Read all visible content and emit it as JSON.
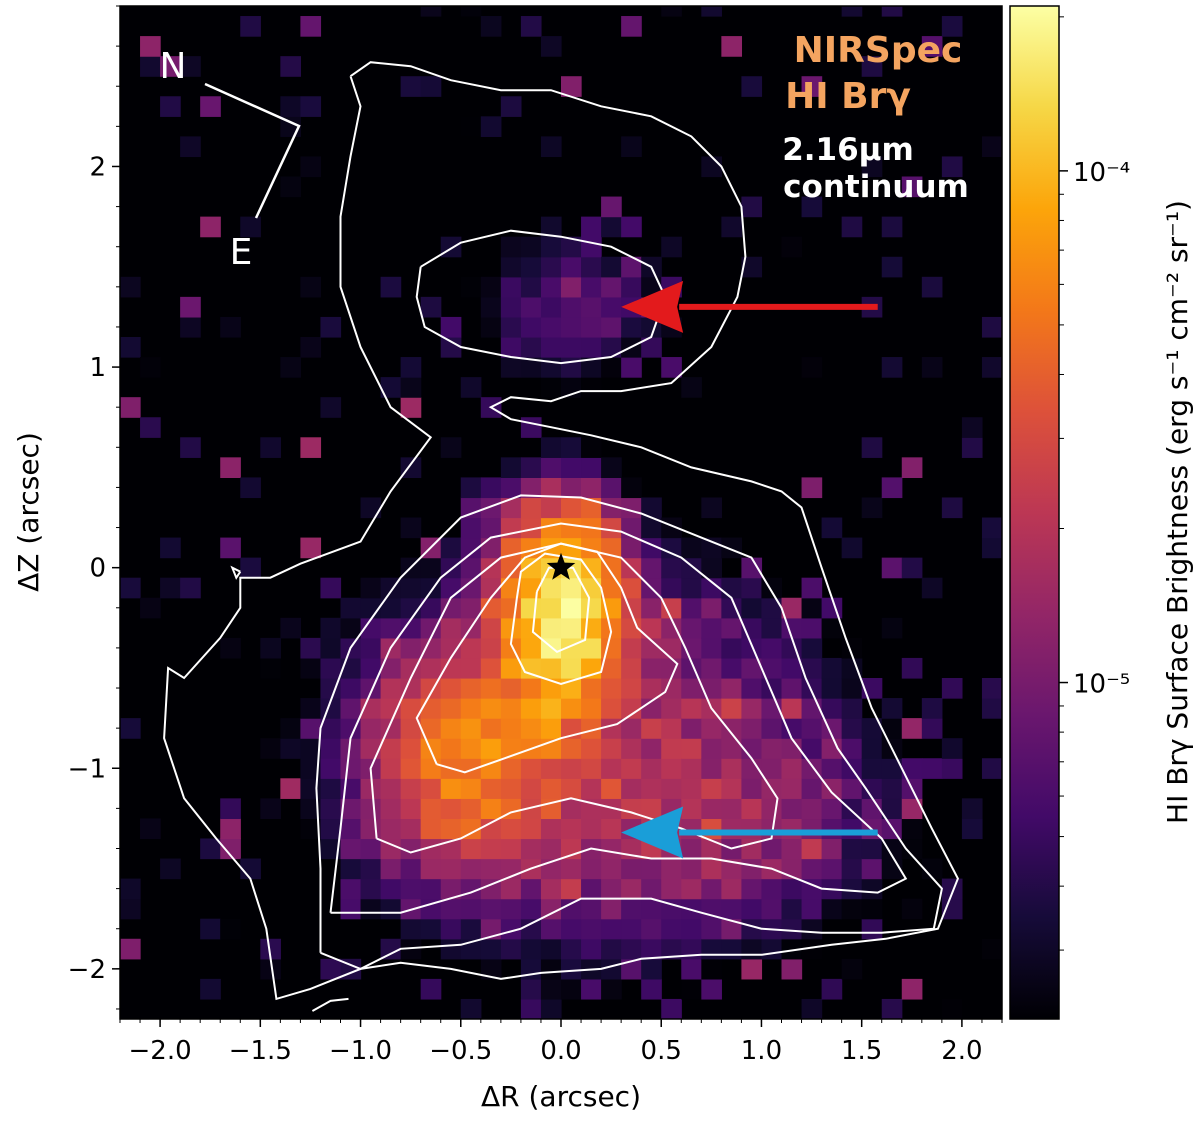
{
  "chart_data": {
    "type": "heatmap",
    "title": "",
    "xlabel": "ΔR (arcsec)",
    "ylabel": "ΔZ (arcsec)",
    "xlim": [
      -2.2,
      2.2
    ],
    "ylim": [
      -2.25,
      2.8
    ],
    "x_ticks": [
      -2.0,
      -1.5,
      -1.0,
      -0.5,
      0.0,
      0.5,
      1.0,
      1.5,
      2.0
    ],
    "x_tick_labels": [
      "−2.0",
      "−1.5",
      "−1.0",
      "−0.5",
      "0.0",
      "0.5",
      "1.0",
      "1.5",
      "2.0"
    ],
    "y_ticks": [
      -2,
      -1,
      0,
      1,
      2
    ],
    "y_tick_labels": [
      "−2",
      "−1",
      "0",
      "1",
      "2"
    ],
    "colorbar": {
      "label": "HI Brγ Surface Brightness (erg s⁻¹ cm⁻² sr⁻¹)",
      "scale": "log",
      "range": [
        2.2e-06,
        0.00021
      ],
      "major_ticks": [
        1e-05,
        0.0001
      ],
      "major_tick_labels": [
        "10⁻⁵",
        "10⁻⁴"
      ],
      "colormap": "inferno"
    },
    "legend": {
      "line1": "NIRSpec",
      "line2": "HI Brγ",
      "line3": "2.16μm",
      "line4": "continuum",
      "emission_color": "#f4a460",
      "continuum_color": "#ffffff"
    },
    "compass": {
      "north_label": "N",
      "east_label": "E"
    },
    "star_marker": {
      "x": 0.0,
      "y": 0.0
    },
    "arrows": [
      {
        "color": "#e31a1c",
        "tip": [
          0.3,
          1.3
        ],
        "tail": [
          1.58,
          1.3
        ]
      },
      {
        "color": "#1a9ed8",
        "tip": [
          0.3,
          -1.32
        ],
        "tail": [
          1.58,
          -1.32
        ]
      }
    ],
    "emission_components": [
      {
        "name": "peak",
        "x": 0.0,
        "y": -0.22,
        "sx": 0.17,
        "sy": 0.28,
        "amp": 0.00017
      },
      {
        "name": "lower-left lobe",
        "x": -0.45,
        "y": -0.95,
        "sx": 0.28,
        "sy": 0.3,
        "amp": 5e-05
      },
      {
        "name": "base",
        "x": 0.1,
        "y": -0.9,
        "sx": 0.7,
        "sy": 0.6,
        "amp": 1.6e-05
      },
      {
        "name": "lower-right tail",
        "x": 0.85,
        "y": -1.25,
        "sx": 0.5,
        "sy": 0.35,
        "amp": 8e-06
      },
      {
        "name": "upper blob",
        "x": 0.05,
        "y": 1.3,
        "sx": 0.35,
        "sy": 0.25,
        "amp": 7e-06
      }
    ],
    "contours": [
      {
        "level": 1,
        "points": [
          [
            -1.05,
            2.45
          ],
          [
            -0.95,
            2.52
          ],
          [
            -0.75,
            2.5
          ],
          [
            -0.55,
            2.43
          ],
          [
            -0.3,
            2.38
          ],
          [
            -0.05,
            2.38
          ],
          [
            0.2,
            2.3
          ],
          [
            0.45,
            2.25
          ],
          [
            0.65,
            2.15
          ],
          [
            0.8,
            2.0
          ],
          [
            0.9,
            1.8
          ],
          [
            0.92,
            1.55
          ],
          [
            0.88,
            1.35
          ],
          [
            0.75,
            1.1
          ],
          [
            0.55,
            0.92
          ],
          [
            0.3,
            0.88
          ],
          [
            0.1,
            0.88
          ],
          [
            -0.05,
            0.83
          ],
          [
            -0.25,
            0.85
          ],
          [
            -0.35,
            0.8
          ],
          [
            -0.25,
            0.74
          ],
          [
            -0.05,
            0.7
          ],
          [
            0.15,
            0.66
          ],
          [
            0.4,
            0.6
          ],
          [
            0.65,
            0.5
          ],
          [
            0.95,
            0.43
          ],
          [
            1.1,
            0.38
          ],
          [
            1.2,
            0.3
          ],
          [
            1.3,
            0.0
          ],
          [
            1.42,
            -0.35
          ],
          [
            1.55,
            -0.7
          ],
          [
            1.7,
            -1.0
          ],
          [
            1.85,
            -1.3
          ],
          [
            1.98,
            -1.55
          ],
          [
            1.88,
            -1.8
          ],
          [
            1.62,
            -1.85
          ],
          [
            1.35,
            -1.88
          ],
          [
            1.0,
            -1.93
          ],
          [
            0.7,
            -1.93
          ],
          [
            0.4,
            -1.95
          ],
          [
            0.2,
            -2.0
          ],
          [
            -0.1,
            -2.02
          ],
          [
            -0.3,
            -2.05
          ],
          [
            -0.55,
            -2.0
          ],
          [
            -0.8,
            -1.97
          ],
          [
            -1.0,
            -2.0
          ],
          [
            -1.25,
            -2.1
          ],
          [
            -1.42,
            -2.15
          ],
          [
            -1.47,
            -1.8
          ],
          [
            -1.55,
            -1.55
          ],
          [
            -1.72,
            -1.35
          ],
          [
            -1.88,
            -1.15
          ],
          [
            -1.98,
            -0.85
          ],
          [
            -1.96,
            -0.5
          ],
          [
            -1.88,
            -0.55
          ],
          [
            -1.7,
            -0.35
          ],
          [
            -1.6,
            -0.2
          ],
          [
            -1.6,
            -0.05
          ],
          [
            -1.45,
            -0.05
          ],
          [
            -1.3,
            0.02
          ],
          [
            -1.0,
            0.13
          ],
          [
            -0.85,
            0.38
          ],
          [
            -0.65,
            0.65
          ],
          [
            -0.85,
            0.8
          ],
          [
            -1.0,
            1.1
          ],
          [
            -1.1,
            1.4
          ],
          [
            -1.1,
            1.75
          ],
          [
            -1.05,
            2.05
          ],
          [
            -1.0,
            2.3
          ],
          [
            -1.05,
            2.45
          ]
        ]
      },
      {
        "level": 2,
        "points": [
          [
            -0.7,
            1.5
          ],
          [
            -0.5,
            1.62
          ],
          [
            -0.25,
            1.68
          ],
          [
            0.0,
            1.65
          ],
          [
            0.25,
            1.6
          ],
          [
            0.45,
            1.5
          ],
          [
            0.52,
            1.35
          ],
          [
            0.45,
            1.15
          ],
          [
            0.25,
            1.05
          ],
          [
            0.0,
            1.02
          ],
          [
            -0.25,
            1.05
          ],
          [
            -0.5,
            1.1
          ],
          [
            -0.68,
            1.2
          ],
          [
            -0.72,
            1.35
          ],
          [
            -0.7,
            1.5
          ]
        ]
      },
      {
        "level": 3,
        "points": [
          [
            -1.2,
            -1.92
          ],
          [
            -1.2,
            -1.5
          ],
          [
            -1.22,
            -1.1
          ],
          [
            -1.2,
            -0.8
          ],
          [
            -1.05,
            -0.4
          ],
          [
            -0.8,
            -0.05
          ],
          [
            -0.5,
            0.25
          ],
          [
            -0.2,
            0.36
          ],
          [
            0.1,
            0.35
          ],
          [
            0.4,
            0.27
          ],
          [
            0.7,
            0.15
          ],
          [
            0.95,
            0.05
          ],
          [
            1.1,
            -0.2
          ],
          [
            1.22,
            -0.55
          ],
          [
            1.38,
            -0.9
          ],
          [
            1.52,
            -1.1
          ],
          [
            1.72,
            -1.4
          ],
          [
            1.9,
            -1.6
          ],
          [
            1.86,
            -1.8
          ],
          [
            1.6,
            -1.82
          ],
          [
            1.3,
            -1.82
          ],
          [
            1.0,
            -1.8
          ],
          [
            0.7,
            -1.72
          ],
          [
            0.45,
            -1.65
          ],
          [
            0.1,
            -1.65
          ],
          [
            -0.2,
            -1.8
          ],
          [
            -0.5,
            -1.88
          ],
          [
            -0.8,
            -1.9
          ],
          [
            -1.0,
            -2.0
          ],
          [
            -1.2,
            -1.92
          ]
        ]
      },
      {
        "level": 4,
        "points": [
          [
            -1.15,
            -1.72
          ],
          [
            -1.1,
            -1.3
          ],
          [
            -1.05,
            -0.85
          ],
          [
            -0.85,
            -0.4
          ],
          [
            -0.6,
            -0.05
          ],
          [
            -0.35,
            0.15
          ],
          [
            0.0,
            0.22
          ],
          [
            0.3,
            0.18
          ],
          [
            0.6,
            0.05
          ],
          [
            0.85,
            -0.15
          ],
          [
            1.0,
            -0.5
          ],
          [
            1.15,
            -0.85
          ],
          [
            1.35,
            -1.12
          ],
          [
            1.6,
            -1.35
          ],
          [
            1.72,
            -1.55
          ],
          [
            1.58,
            -1.62
          ],
          [
            1.3,
            -1.6
          ],
          [
            1.05,
            -1.5
          ],
          [
            0.75,
            -1.45
          ],
          [
            0.45,
            -1.45
          ],
          [
            0.15,
            -1.4
          ],
          [
            -0.15,
            -1.5
          ],
          [
            -0.45,
            -1.62
          ],
          [
            -0.8,
            -1.72
          ],
          [
            -1.15,
            -1.72
          ]
        ]
      },
      {
        "level": 5,
        "points": [
          [
            -0.92,
            -1.35
          ],
          [
            -0.95,
            -1.0
          ],
          [
            -0.75,
            -0.55
          ],
          [
            -0.55,
            -0.15
          ],
          [
            -0.3,
            0.05
          ],
          [
            0.0,
            0.12
          ],
          [
            0.3,
            0.05
          ],
          [
            0.5,
            -0.15
          ],
          [
            0.62,
            -0.4
          ],
          [
            0.75,
            -0.7
          ],
          [
            0.95,
            -0.95
          ],
          [
            1.08,
            -1.15
          ],
          [
            1.05,
            -1.35
          ],
          [
            0.85,
            -1.4
          ],
          [
            0.6,
            -1.3
          ],
          [
            0.35,
            -1.22
          ],
          [
            0.05,
            -1.15
          ],
          [
            -0.25,
            -1.22
          ],
          [
            -0.5,
            -1.35
          ],
          [
            -0.75,
            -1.42
          ],
          [
            -0.92,
            -1.35
          ]
        ]
      },
      {
        "level": 6,
        "points": [
          [
            -0.62,
            -0.98
          ],
          [
            -0.72,
            -0.75
          ],
          [
            -0.55,
            -0.45
          ],
          [
            -0.35,
            -0.15
          ],
          [
            -0.18,
            0.05
          ],
          [
            0.0,
            0.12
          ],
          [
            0.18,
            0.08
          ],
          [
            0.3,
            -0.1
          ],
          [
            0.38,
            -0.3
          ],
          [
            0.58,
            -0.48
          ],
          [
            0.52,
            -0.62
          ],
          [
            0.28,
            -0.78
          ],
          [
            0.0,
            -0.85
          ],
          [
            -0.28,
            -0.95
          ],
          [
            -0.48,
            -1.02
          ],
          [
            -0.62,
            -0.98
          ]
        ]
      },
      {
        "level": 7,
        "points": [
          [
            -0.22,
            -0.15
          ],
          [
            -0.25,
            -0.38
          ],
          [
            -0.18,
            -0.52
          ],
          [
            0.0,
            -0.58
          ],
          [
            0.2,
            -0.52
          ],
          [
            0.25,
            -0.32
          ],
          [
            0.2,
            -0.1
          ],
          [
            0.1,
            0.04
          ],
          [
            -0.08,
            0.07
          ],
          [
            -0.2,
            -0.02
          ],
          [
            -0.22,
            -0.15
          ]
        ]
      },
      {
        "level": 8,
        "points": [
          [
            -0.12,
            -0.12
          ],
          [
            -0.14,
            -0.32
          ],
          [
            -0.02,
            -0.42
          ],
          [
            0.12,
            -0.36
          ],
          [
            0.14,
            -0.15
          ],
          [
            0.06,
            0.0
          ],
          [
            -0.06,
            0.0
          ],
          [
            -0.12,
            -0.12
          ]
        ]
      },
      {
        "level": 9,
        "points": [
          [
            -1.6,
            -0.02
          ],
          [
            -1.64,
            0.0
          ],
          [
            -1.62,
            -0.05
          ],
          [
            -1.6,
            -0.02
          ]
        ]
      },
      {
        "level": 10,
        "points": [
          [
            -1.24,
            -2.21
          ],
          [
            -1.15,
            -2.16
          ],
          [
            -1.06,
            -2.15
          ]
        ]
      }
    ]
  }
}
